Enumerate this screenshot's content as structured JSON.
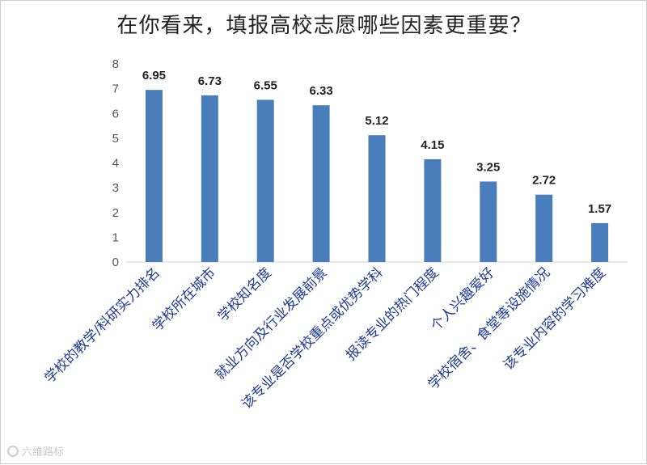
{
  "chart_data": {
    "type": "bar",
    "title": "在你看来，填报高校志愿哪些因素更重要？",
    "categories": [
      "学校的教学/科研实力排名",
      "学校所在城市",
      "学校知名度",
      "就业方向及行业发展前景",
      "该专业是否学校重点或优势学科",
      "报读专业的热门程度",
      "个人兴趣爱好",
      "学校宿舍、食堂等设施情况",
      "该专业内容的学习难度"
    ],
    "values": [
      6.95,
      6.73,
      6.55,
      6.33,
      5.12,
      4.15,
      3.25,
      2.72,
      1.57
    ],
    "ylim": [
      0,
      8
    ],
    "yticks": [
      0,
      1,
      2,
      3,
      4,
      5,
      6,
      7,
      8
    ],
    "bar_color": "#4a7ebb",
    "grid": false,
    "xlabel": "",
    "ylabel": ""
  },
  "watermark": {
    "text": "六维路标"
  }
}
